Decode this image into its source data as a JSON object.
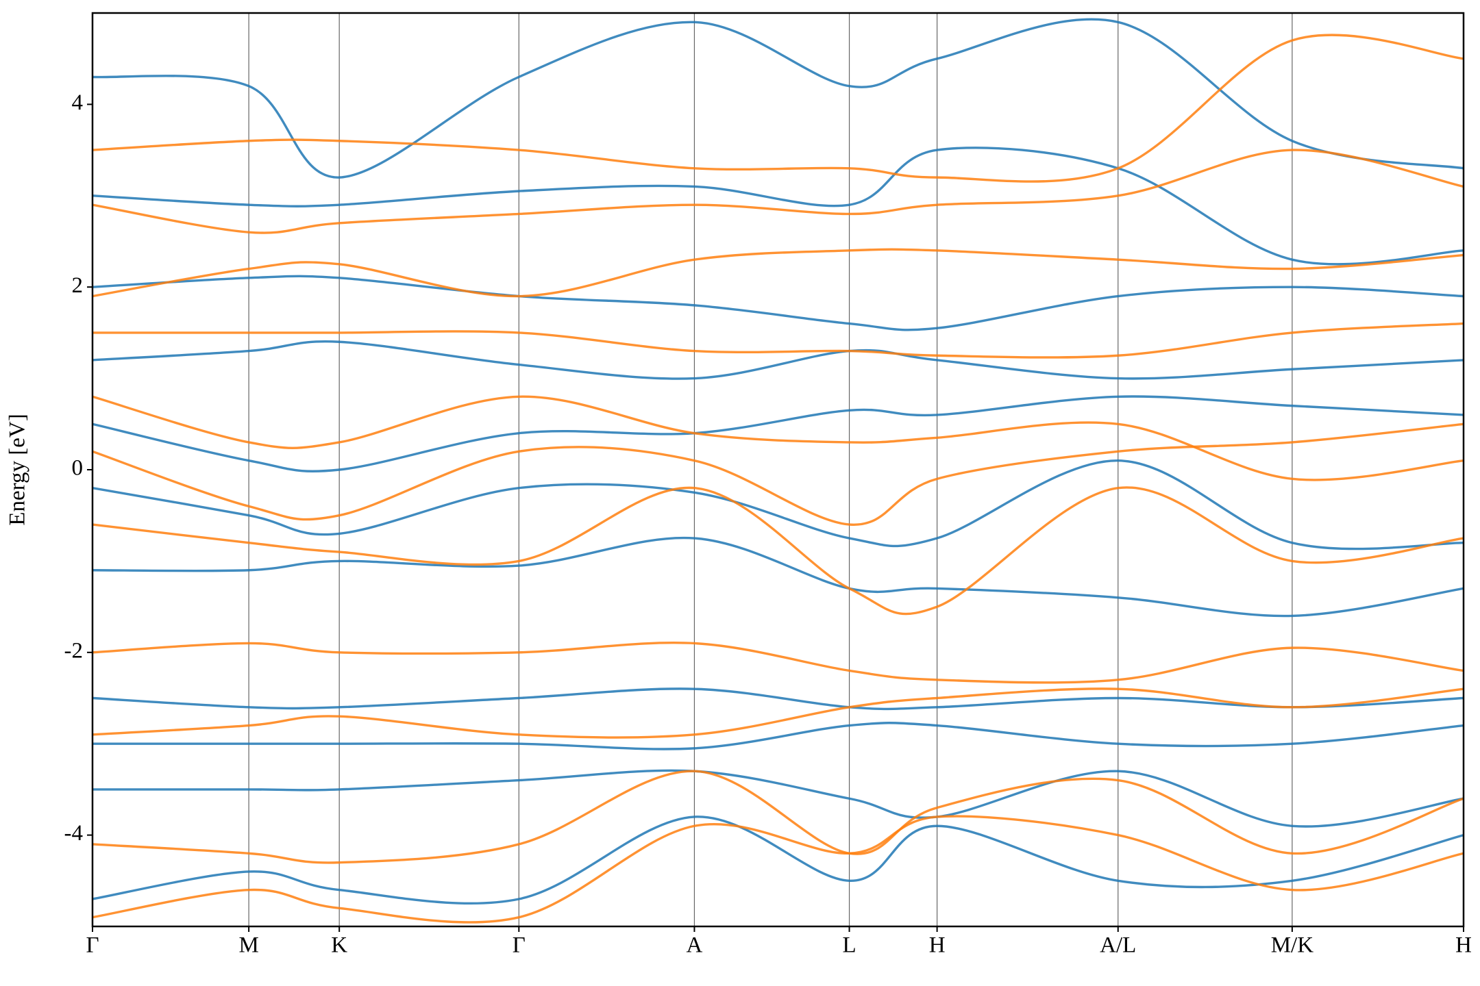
{
  "chart_data": {
    "type": "line",
    "ylabel": "Energy [eV]",
    "ylim": [
      -5,
      5
    ],
    "yticks": [
      -4,
      -2,
      0,
      2,
      4
    ],
    "xlim": [
      0,
      1
    ],
    "xticks": [
      {
        "value": 0,
        "label": "Γ"
      },
      {
        "value": 0.114,
        "label": "M"
      },
      {
        "value": 0.18,
        "label": "K"
      },
      {
        "value": 0.311,
        "label": "Γ"
      },
      {
        "value": 0.439,
        "label": "A"
      },
      {
        "value": 0.552,
        "label": "L"
      },
      {
        "value": 0.616,
        "label": "H"
      },
      {
        "value": 0.748,
        "label": "A/L"
      },
      {
        "value": 0.875,
        "label": "M/K"
      },
      {
        "value": 1,
        "label": "H"
      }
    ],
    "x": [
      0,
      0.114,
      0.18,
      0.311,
      0.439,
      0.552,
      0.616,
      0.748,
      0.875,
      1
    ],
    "series": [
      {
        "color": "#1f77b4",
        "values": [
          -4.7,
          -4.4,
          -4.6,
          -4.7,
          -3.8,
          -4.5,
          -3.9,
          -4.5,
          -4.5,
          -4.0
        ]
      },
      {
        "color": "#1f77b4",
        "values": [
          -3.5,
          -3.5,
          -3.5,
          -3.4,
          -3.3,
          -3.6,
          -3.8,
          -3.3,
          -3.9,
          -3.6
        ]
      },
      {
        "color": "#1f77b4",
        "values": [
          -3.0,
          -3.0,
          -3.0,
          -3.0,
          -3.05,
          -2.8,
          -2.8,
          -3.0,
          -3.0,
          -2.8
        ]
      },
      {
        "color": "#1f77b4",
        "values": [
          -2.5,
          -2.6,
          -2.6,
          -2.5,
          -2.4,
          -2.6,
          -2.6,
          -2.5,
          -2.6,
          -2.5
        ]
      },
      {
        "color": "#1f77b4",
        "values": [
          -1.1,
          -1.1,
          -1.0,
          -1.05,
          -0.75,
          -1.3,
          -1.3,
          -1.4,
          -1.6,
          -1.3
        ]
      },
      {
        "color": "#1f77b4",
        "values": [
          -0.2,
          -0.5,
          -0.7,
          -0.2,
          -0.25,
          -0.75,
          -0.75,
          0.1,
          -0.8,
          -0.8
        ]
      },
      {
        "color": "#1f77b4",
        "values": [
          0.5,
          0.1,
          0.0,
          0.4,
          0.4,
          0.65,
          0.6,
          0.8,
          0.7,
          0.6
        ]
      },
      {
        "color": "#1f77b4",
        "values": [
          1.2,
          1.3,
          1.4,
          1.15,
          1.0,
          1.3,
          1.2,
          1.0,
          1.1,
          1.2
        ]
      },
      {
        "color": "#1f77b4",
        "values": [
          2.0,
          2.1,
          2.1,
          1.9,
          1.8,
          1.6,
          1.55,
          1.9,
          2.0,
          1.9
        ]
      },
      {
        "color": "#1f77b4",
        "values": [
          3.0,
          2.9,
          2.9,
          3.05,
          3.1,
          2.9,
          3.5,
          3.3,
          2.3,
          2.4
        ]
      },
      {
        "color": "#1f77b4",
        "values": [
          4.3,
          4.2,
          3.2,
          4.3,
          4.9,
          4.2,
          4.5,
          4.9,
          3.6,
          3.3
        ]
      },
      {
        "color": "#ff7f0e",
        "values": [
          -4.1,
          -4.2,
          -4.3,
          -4.1,
          -3.3,
          -4.2,
          -3.7,
          -3.4,
          -4.2,
          -3.6
        ]
      },
      {
        "color": "#ff7f0e",
        "values": [
          -2.9,
          -2.8,
          -2.7,
          -2.9,
          -2.9,
          -2.6,
          -2.5,
          -2.4,
          -2.6,
          -2.4
        ]
      },
      {
        "color": "#ff7f0e",
        "values": [
          -2.0,
          -1.9,
          -2.0,
          -2.0,
          -1.9,
          -2.2,
          -2.3,
          -2.3,
          -1.95,
          -2.2
        ]
      },
      {
        "color": "#ff7f0e",
        "values": [
          -0.6,
          -0.8,
          -0.9,
          -1.0,
          -0.2,
          -1.3,
          -1.5,
          -0.2,
          -1.0,
          -0.75
        ]
      },
      {
        "color": "#ff7f0e",
        "values": [
          0.2,
          -0.4,
          -0.5,
          0.2,
          0.1,
          -0.6,
          -0.1,
          0.2,
          0.3,
          0.5
        ]
      },
      {
        "color": "#ff7f0e",
        "values": [
          0.8,
          0.3,
          0.3,
          0.8,
          0.4,
          0.3,
          0.35,
          0.5,
          -0.1,
          0.1
        ]
      },
      {
        "color": "#ff7f0e",
        "values": [
          1.5,
          1.5,
          1.5,
          1.5,
          1.3,
          1.3,
          1.25,
          1.25,
          1.5,
          1.6
        ]
      },
      {
        "color": "#ff7f0e",
        "values": [
          1.9,
          2.2,
          2.25,
          1.9,
          2.3,
          2.4,
          2.4,
          2.3,
          2.2,
          2.35
        ]
      },
      {
        "color": "#ff7f0e",
        "values": [
          2.9,
          2.6,
          2.7,
          2.8,
          2.9,
          2.8,
          2.9,
          3.0,
          3.5,
          3.1
        ]
      },
      {
        "color": "#ff7f0e",
        "values": [
          3.5,
          3.6,
          3.6,
          3.5,
          3.3,
          3.3,
          3.2,
          3.3,
          4.7,
          4.5
        ]
      },
      {
        "color": "#ff7f0e",
        "values": [
          -4.9,
          -4.6,
          -4.8,
          -4.9,
          -3.9,
          -4.2,
          -3.8,
          -4.0,
          -4.6,
          -4.2
        ]
      }
    ]
  }
}
